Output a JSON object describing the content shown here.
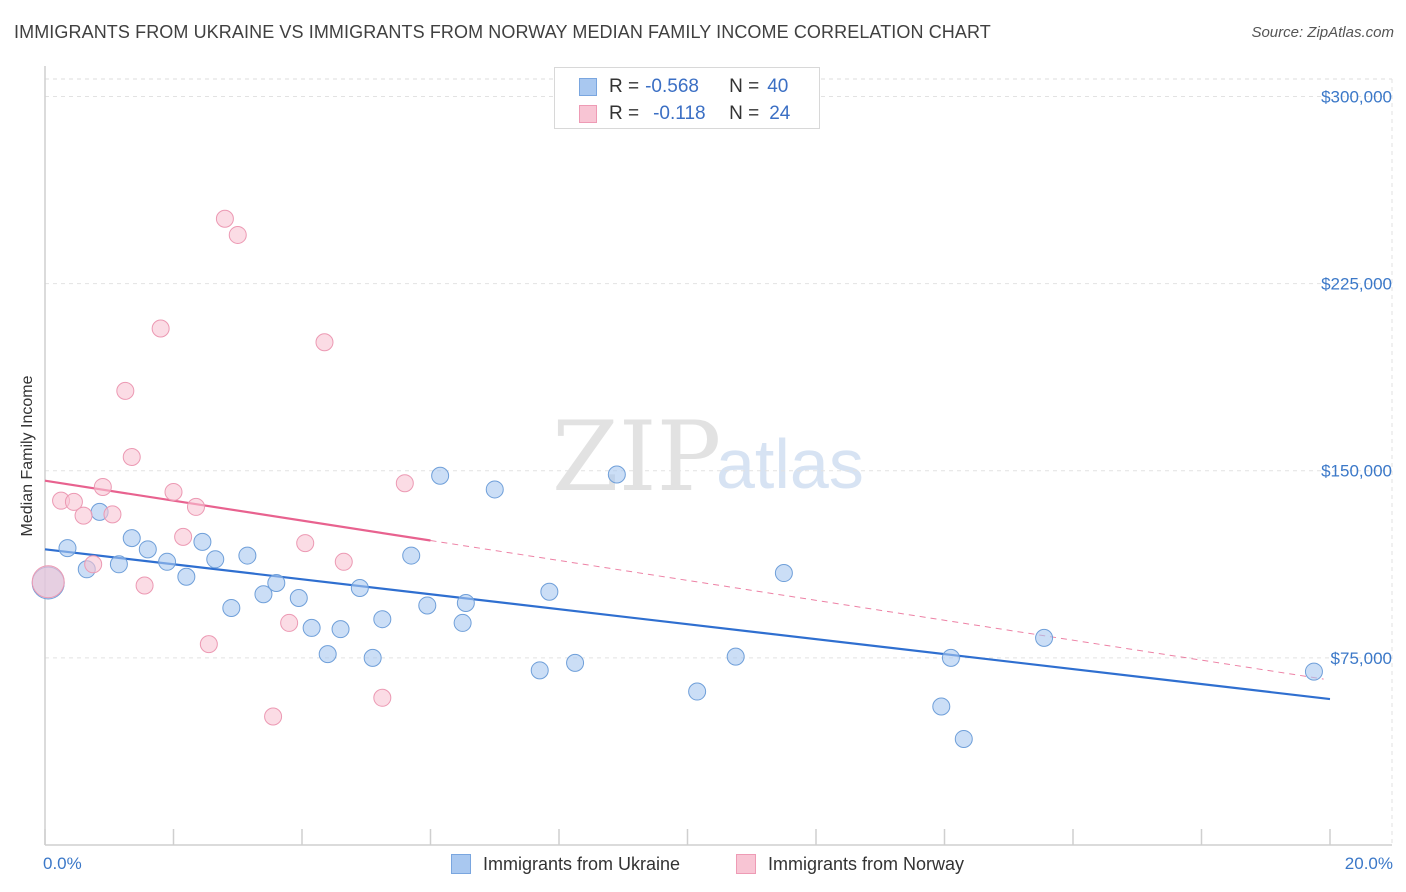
{
  "title": "IMMIGRANTS FROM UKRAINE VS IMMIGRANTS FROM NORWAY MEDIAN FAMILY INCOME CORRELATION CHART",
  "source": "Source: ZipAtlas.com",
  "watermark": {
    "zip": "ZIP",
    "atlas": "atlas"
  },
  "stats": [
    {
      "r_label": "R =",
      "r_value": "-0.568",
      "n_label": "N =",
      "n_value": "40",
      "color": "#a9c8f0",
      "border": "#7aa6df"
    },
    {
      "r_label": "R =",
      "r_value": "-0.118",
      "n_label": "N =",
      "n_value": "24",
      "color": "#f8c5d4",
      "border": "#ee9bb5"
    }
  ],
  "legend": [
    {
      "label": "Immigrants from Ukraine",
      "color": "#a9c8f0",
      "border": "#7aa6df"
    },
    {
      "label": "Immigrants from Norway",
      "color": "#f8c5d4",
      "border": "#ee9bb5"
    }
  ],
  "chart_data": {
    "type": "scatter",
    "title": "IMMIGRANTS FROM UKRAINE VS IMMIGRANTS FROM NORWAY MEDIAN FAMILY INCOME CORRELATION CHART",
    "xlabel": "",
    "ylabel": "Median Family Income",
    "xlim": [
      0,
      20
    ],
    "ylim": [
      0,
      307000
    ],
    "x_tick_labels": [
      {
        "value": 0,
        "label": "0.0%"
      },
      {
        "value": 20,
        "label": "20.0%"
      }
    ],
    "y_ticks": [
      {
        "value": 75000,
        "label": "$75,000"
      },
      {
        "value": 150000,
        "label": "$150,000"
      },
      {
        "value": 225000,
        "label": "$225,000"
      },
      {
        "value": 300000,
        "label": "$300,000"
      }
    ],
    "grid": true,
    "series": [
      {
        "name": "Immigrants from Ukraine",
        "color": "#a9c8f0",
        "stroke": "#6f9fd9",
        "trend": {
          "x0": 0,
          "y0": 118500,
          "x1": 20,
          "y1": 58500,
          "color": "#2f6fd0",
          "solid_until": 20
        },
        "points": [
          {
            "x": 0.05,
            "y": 105000,
            "big": true
          },
          {
            "x": 0.35,
            "y": 119000
          },
          {
            "x": 0.65,
            "y": 110500
          },
          {
            "x": 0.85,
            "y": 133500
          },
          {
            "x": 1.15,
            "y": 112500
          },
          {
            "x": 1.35,
            "y": 123000
          },
          {
            "x": 1.6,
            "y": 118500
          },
          {
            "x": 1.9,
            "y": 113500
          },
          {
            "x": 2.2,
            "y": 107500
          },
          {
            "x": 2.45,
            "y": 121500
          },
          {
            "x": 2.65,
            "y": 114500
          },
          {
            "x": 2.9,
            "y": 95000
          },
          {
            "x": 3.15,
            "y": 116000
          },
          {
            "x": 3.4,
            "y": 100500
          },
          {
            "x": 3.6,
            "y": 105000
          },
          {
            "x": 3.95,
            "y": 99000
          },
          {
            "x": 4.15,
            "y": 87000
          },
          {
            "x": 4.4,
            "y": 76500
          },
          {
            "x": 4.6,
            "y": 86500
          },
          {
            "x": 4.9,
            "y": 103000
          },
          {
            "x": 5.1,
            "y": 75000
          },
          {
            "x": 5.25,
            "y": 90500
          },
          {
            "x": 5.7,
            "y": 116000
          },
          {
            "x": 5.95,
            "y": 96000
          },
          {
            "x": 6.15,
            "y": 148000
          },
          {
            "x": 6.5,
            "y": 89000
          },
          {
            "x": 6.55,
            "y": 97000
          },
          {
            "x": 7.0,
            "y": 142500
          },
          {
            "x": 7.7,
            "y": 70000
          },
          {
            "x": 7.85,
            "y": 101500
          },
          {
            "x": 8.25,
            "y": 73000
          },
          {
            "x": 8.9,
            "y": 148500
          },
          {
            "x": 10.15,
            "y": 61500
          },
          {
            "x": 10.75,
            "y": 75500
          },
          {
            "x": 11.5,
            "y": 109000
          },
          {
            "x": 13.95,
            "y": 55500
          },
          {
            "x": 14.1,
            "y": 75000
          },
          {
            "x": 14.3,
            "y": 42500
          },
          {
            "x": 15.55,
            "y": 83000
          },
          {
            "x": 19.75,
            "y": 69500
          }
        ]
      },
      {
        "name": "Immigrants from Norway",
        "color": "#f8c5d4",
        "stroke": "#ec99b3",
        "trend": {
          "x0": 0,
          "y0": 146000,
          "x1": 19.9,
          "y1": 66500,
          "color": "#e8628f",
          "solid_until": 6.0
        },
        "points": [
          {
            "x": 0.05,
            "y": 105500,
            "big": true
          },
          {
            "x": 0.25,
            "y": 138000
          },
          {
            "x": 0.45,
            "y": 137500
          },
          {
            "x": 0.6,
            "y": 132000
          },
          {
            "x": 0.75,
            "y": 112500
          },
          {
            "x": 0.9,
            "y": 143500
          },
          {
            "x": 1.05,
            "y": 132500
          },
          {
            "x": 1.25,
            "y": 182000
          },
          {
            "x": 1.35,
            "y": 155500
          },
          {
            "x": 1.55,
            "y": 104000
          },
          {
            "x": 1.8,
            "y": 207000
          },
          {
            "x": 2.0,
            "y": 141500
          },
          {
            "x": 2.15,
            "y": 123500
          },
          {
            "x": 2.35,
            "y": 135500
          },
          {
            "x": 2.55,
            "y": 80500
          },
          {
            "x": 2.8,
            "y": 251000
          },
          {
            "x": 3.0,
            "y": 244500
          },
          {
            "x": 3.55,
            "y": 51500
          },
          {
            "x": 3.8,
            "y": 89000
          },
          {
            "x": 4.05,
            "y": 121000
          },
          {
            "x": 4.35,
            "y": 201500
          },
          {
            "x": 4.65,
            "y": 113500
          },
          {
            "x": 5.25,
            "y": 59000
          },
          {
            "x": 5.6,
            "y": 145000
          }
        ]
      }
    ]
  }
}
